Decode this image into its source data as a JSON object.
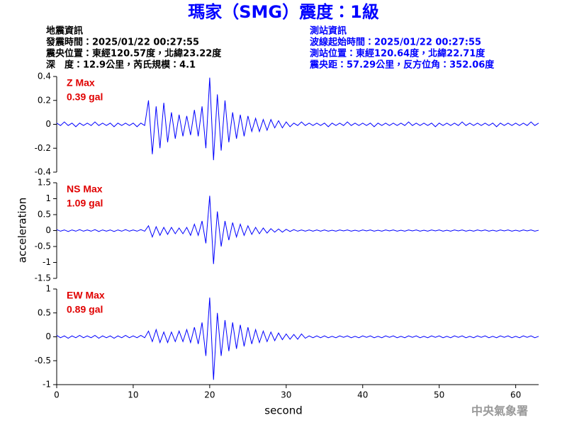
{
  "header": {
    "title": "瑪家（SMG）震度：1級",
    "event": [
      "地震資訊",
      "發震時間：2025/01/22 00:27:55",
      "震央位置：東經120.57度，北緯23.22度",
      "深　度：12.9公里，芮氏規模：4.1"
    ],
    "station": [
      "測站資訊",
      "波線起始時間：2025/01/22 00:27:55",
      "測站位置：東經120.64度，北緯22.71度",
      "震央距：57.29公里，反方位角：352.06度"
    ],
    "footer": "中央氣象署"
  },
  "chart_data": [
    {
      "type": "line",
      "label": "Z Max",
      "max_label": "0.39 gal",
      "color": "#0000ff",
      "xlim": [
        0,
        63
      ],
      "ylim": [
        -0.4,
        0.4
      ],
      "yticks": [
        -0.4,
        -0.2,
        0,
        0.2,
        0.4
      ],
      "x": [
        0,
        0.5,
        1,
        1.5,
        2,
        2.5,
        3,
        3.5,
        4,
        4.5,
        5,
        5.5,
        6,
        6.5,
        7,
        7.5,
        8,
        8.5,
        9,
        9.5,
        10,
        10.5,
        11,
        11.5,
        12,
        12.5,
        13,
        13.5,
        14,
        14.5,
        15,
        15.5,
        16,
        16.5,
        17,
        17.5,
        18,
        18.5,
        19,
        19.5,
        20,
        20.5,
        21,
        21.5,
        22,
        22.5,
        23,
        23.5,
        24,
        24.5,
        25,
        25.5,
        26,
        26.5,
        27,
        27.5,
        28,
        28.5,
        29,
        29.5,
        30,
        30.5,
        31,
        31.5,
        32,
        32.5,
        33,
        33.5,
        34,
        34.5,
        35,
        35.5,
        36,
        36.5,
        37,
        37.5,
        38,
        38.5,
        39,
        39.5,
        40,
        40.5,
        41,
        41.5,
        42,
        42.5,
        43,
        43.5,
        44,
        44.5,
        45,
        45.5,
        46,
        46.5,
        47,
        47.5,
        48,
        48.5,
        49,
        49.5,
        50,
        50.5,
        51,
        51.5,
        52,
        52.5,
        53,
        53.5,
        54,
        54.5,
        55,
        55.5,
        56,
        56.5,
        57,
        57.5,
        58,
        58.5,
        59,
        59.5,
        60,
        60.5,
        61,
        61.5,
        62,
        62.5,
        63
      ],
      "values": [
        0.01,
        -0.01,
        0.02,
        -0.01,
        0.01,
        -0.02,
        0.01,
        -0.01,
        0.01,
        -0.01,
        0.02,
        -0.01,
        0.01,
        -0.01,
        0.01,
        -0.02,
        0.01,
        -0.01,
        0.01,
        -0.01,
        0.01,
        -0.02,
        0.01,
        -0.01,
        0.2,
        -0.25,
        0.15,
        -0.2,
        0.18,
        -0.15,
        0.1,
        -0.12,
        0.08,
        -0.1,
        0.07,
        -0.09,
        0.12,
        -0.1,
        0.15,
        -0.2,
        0.39,
        -0.3,
        0.25,
        -0.22,
        0.2,
        -0.15,
        0.1,
        -0.12,
        0.08,
        -0.1,
        0.07,
        -0.06,
        0.05,
        -0.06,
        0.04,
        -0.05,
        0.04,
        -0.03,
        0.03,
        -0.03,
        0.02,
        -0.02,
        0.01,
        -0.01,
        0.02,
        -0.01,
        0.01,
        -0.01,
        0.01,
        -0.01,
        0.01,
        -0.02,
        0.01,
        -0.01,
        0.01,
        -0.01,
        0.02,
        -0.01,
        0.01,
        -0.01,
        0.01,
        -0.01,
        0.01,
        -0.02,
        0.01,
        -0.01,
        0.01,
        -0.01,
        0.01,
        -0.01,
        0.01,
        -0.01,
        0.02,
        -0.01,
        0.01,
        -0.01,
        0.01,
        -0.01,
        0.01,
        -0.02,
        0.01,
        -0.01,
        0.01,
        -0.01,
        0.01,
        -0.01,
        0.02,
        -0.01,
        0.01,
        -0.01,
        0.01,
        -0.01,
        0.01,
        -0.01,
        0.01,
        -0.02,
        0.01,
        -0.01,
        0.01,
        -0.01,
        0.01,
        -0.01,
        0.01,
        -0.01,
        0.02,
        -0.01,
        0.01
      ]
    },
    {
      "type": "line",
      "label": "NS Max",
      "max_label": "1.09 gal",
      "color": "#0000ff",
      "ylabel": "acceleration",
      "xlim": [
        0,
        63
      ],
      "ylim": [
        -1.5,
        1.5
      ],
      "yticks": [
        -1.5,
        -1,
        -0.5,
        0,
        0.5,
        1,
        1.5
      ],
      "x": [
        0,
        0.5,
        1,
        1.5,
        2,
        2.5,
        3,
        3.5,
        4,
        4.5,
        5,
        5.5,
        6,
        6.5,
        7,
        7.5,
        8,
        8.5,
        9,
        9.5,
        10,
        10.5,
        11,
        11.5,
        12,
        12.5,
        13,
        13.5,
        14,
        14.5,
        15,
        15.5,
        16,
        16.5,
        17,
        17.5,
        18,
        18.5,
        19,
        19.5,
        20,
        20.5,
        21,
        21.5,
        22,
        22.5,
        23,
        23.5,
        24,
        24.5,
        25,
        25.5,
        26,
        26.5,
        27,
        27.5,
        28,
        28.5,
        29,
        29.5,
        30,
        30.5,
        31,
        31.5,
        32,
        32.5,
        33,
        33.5,
        34,
        34.5,
        35,
        35.5,
        36,
        36.5,
        37,
        37.5,
        38,
        38.5,
        39,
        39.5,
        40,
        40.5,
        41,
        41.5,
        42,
        42.5,
        43,
        43.5,
        44,
        44.5,
        45,
        45.5,
        46,
        46.5,
        47,
        47.5,
        48,
        48.5,
        49,
        49.5,
        50,
        50.5,
        51,
        51.5,
        52,
        52.5,
        53,
        53.5,
        54,
        54.5,
        55,
        55.5,
        56,
        56.5,
        57,
        57.5,
        58,
        58.5,
        59,
        59.5,
        60,
        60.5,
        61,
        61.5,
        62,
        62.5,
        63
      ],
      "values": [
        0.03,
        -0.02,
        0.02,
        -0.03,
        0.02,
        -0.02,
        0.03,
        -0.02,
        0.02,
        -0.02,
        0.03,
        -0.03,
        0.02,
        -0.02,
        0.02,
        -0.03,
        0.02,
        -0.02,
        0.03,
        -0.02,
        0.02,
        -0.02,
        0.03,
        -0.02,
        0.15,
        -0.2,
        0.12,
        -0.15,
        0.1,
        -0.12,
        0.1,
        -0.1,
        0.08,
        -0.1,
        0.1,
        -0.15,
        0.2,
        -0.15,
        0.3,
        -0.4,
        1.09,
        -1.05,
        0.6,
        -0.5,
        0.3,
        -0.3,
        0.25,
        -0.2,
        0.2,
        -0.15,
        0.15,
        -0.12,
        0.1,
        -0.1,
        0.08,
        -0.08,
        0.06,
        -0.05,
        0.05,
        -0.05,
        0.04,
        -0.03,
        0.03,
        -0.02,
        0.02,
        -0.02,
        0.02,
        -0.02,
        0.02,
        -0.02,
        0.02,
        -0.02,
        0.01,
        -0.02,
        0.02,
        -0.01,
        0.02,
        -0.02,
        0.01,
        -0.02,
        0.02,
        -0.01,
        0.02,
        -0.02,
        0.01,
        -0.02,
        0.02,
        -0.01,
        0.02,
        -0.02,
        0.01,
        -0.02,
        0.02,
        -0.01,
        0.02,
        -0.02,
        0.01,
        -0.02,
        0.02,
        -0.01,
        0.02,
        -0.02,
        0.01,
        -0.02,
        0.02,
        -0.01,
        0.02,
        -0.02,
        0.01,
        -0.02,
        0.02,
        -0.01,
        0.02,
        -0.02,
        0.01,
        -0.02,
        0.02,
        -0.01,
        0.02,
        -0.02,
        0.01,
        -0.02,
        0.02,
        -0.01,
        0.02,
        -0.02,
        0.01
      ]
    },
    {
      "type": "line",
      "label": "EW Max",
      "max_label": "0.89 gal",
      "color": "#0000ff",
      "xlabel": "second",
      "xlim": [
        0,
        63
      ],
      "ylim": [
        -1,
        1
      ],
      "yticks": [
        -1,
        -0.5,
        0,
        0.5,
        1
      ],
      "xticks": [
        0,
        10,
        20,
        30,
        40,
        50,
        60
      ],
      "x": [
        0,
        0.5,
        1,
        1.5,
        2,
        2.5,
        3,
        3.5,
        4,
        4.5,
        5,
        5.5,
        6,
        6.5,
        7,
        7.5,
        8,
        8.5,
        9,
        9.5,
        10,
        10.5,
        11,
        11.5,
        12,
        12.5,
        13,
        13.5,
        14,
        14.5,
        15,
        15.5,
        16,
        16.5,
        17,
        17.5,
        18,
        18.5,
        19,
        19.5,
        20,
        20.5,
        21,
        21.5,
        22,
        22.5,
        23,
        23.5,
        24,
        24.5,
        25,
        25.5,
        26,
        26.5,
        27,
        27.5,
        28,
        28.5,
        29,
        29.5,
        30,
        30.5,
        31,
        31.5,
        32,
        32.5,
        33,
        33.5,
        34,
        34.5,
        35,
        35.5,
        36,
        36.5,
        37,
        37.5,
        38,
        38.5,
        39,
        39.5,
        40,
        40.5,
        41,
        41.5,
        42,
        42.5,
        43,
        43.5,
        44,
        44.5,
        45,
        45.5,
        46,
        46.5,
        47,
        47.5,
        48,
        48.5,
        49,
        49.5,
        50,
        50.5,
        51,
        51.5,
        52,
        52.5,
        53,
        53.5,
        54,
        54.5,
        55,
        55.5,
        56,
        56.5,
        57,
        57.5,
        58,
        58.5,
        59,
        59.5,
        60,
        60.5,
        61,
        61.5,
        62,
        62.5,
        63
      ],
      "values": [
        0.03,
        -0.02,
        0.02,
        -0.03,
        0.02,
        -0.02,
        0.03,
        -0.02,
        0.02,
        -0.02,
        0.03,
        -0.03,
        0.02,
        -0.02,
        0.02,
        -0.03,
        0.02,
        -0.02,
        0.03,
        -0.02,
        0.02,
        -0.02,
        0.03,
        -0.02,
        0.12,
        -0.1,
        0.15,
        -0.12,
        0.1,
        -0.12,
        0.1,
        -0.1,
        0.12,
        -0.1,
        0.15,
        -0.12,
        0.2,
        -0.15,
        0.3,
        -0.4,
        0.82,
        -0.9,
        0.5,
        -0.4,
        0.35,
        -0.3,
        0.3,
        -0.25,
        0.25,
        -0.2,
        0.2,
        -0.15,
        0.15,
        -0.12,
        0.12,
        -0.1,
        0.1,
        -0.08,
        0.08,
        -0.06,
        0.06,
        -0.05,
        0.05,
        -0.05,
        0.06,
        -0.03,
        0.02,
        -0.02,
        0.02,
        -0.02,
        0.02,
        -0.02,
        0.01,
        -0.02,
        0.02,
        -0.01,
        0.02,
        -0.02,
        0.01,
        -0.02,
        0.02,
        -0.01,
        0.02,
        -0.02,
        0.01,
        -0.02,
        0.02,
        -0.01,
        0.02,
        -0.02,
        0.01,
        -0.02,
        0.02,
        -0.01,
        0.02,
        -0.02,
        0.01,
        -0.02,
        0.02,
        -0.01,
        0.02,
        -0.02,
        0.01,
        -0.02,
        0.02,
        -0.01,
        0.02,
        -0.02,
        0.01,
        -0.02,
        0.02,
        -0.01,
        0.02,
        -0.02,
        0.01,
        -0.02,
        0.02,
        -0.01,
        0.02,
        -0.02,
        0.01,
        -0.02,
        0.02,
        -0.01,
        0.02,
        -0.02,
        0.01
      ]
    }
  ]
}
